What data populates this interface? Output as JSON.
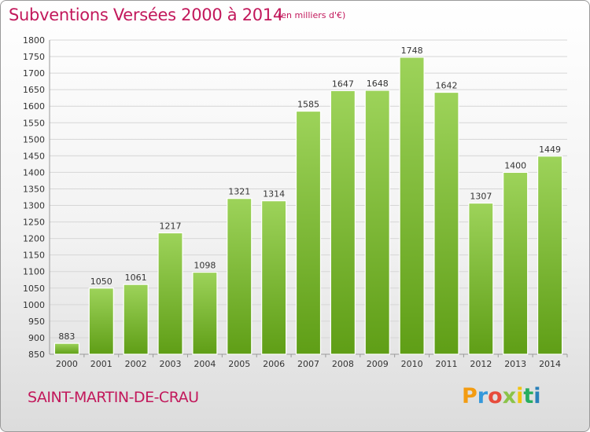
{
  "header": {
    "title": "Subventions Versées 2000 à 2014",
    "unit": "(en milliers d'€)"
  },
  "footer": {
    "commune": "SAINT-MARTIN-DE-CRAU",
    "logo": "Proxiti"
  },
  "colors": {
    "title": "#c2185b",
    "bar_top": "#9dd35a",
    "bar_bottom": "#5f9e16",
    "logo_letters": [
      "#f39c12",
      "#3498db",
      "#e74c3c",
      "#8bc34a",
      "#f1c40f",
      "#27ae60",
      "#2980b9"
    ]
  },
  "chart_data": {
    "type": "bar",
    "title": "Subventions Versées 2000 à 2014",
    "xlabel": "",
    "ylabel": "",
    "categories": [
      "2000",
      "2001",
      "2002",
      "2003",
      "2004",
      "2005",
      "2006",
      "2007",
      "2008",
      "2009",
      "2010",
      "2011",
      "2012",
      "2013",
      "2014"
    ],
    "values": [
      883,
      1050,
      1061,
      1217,
      1098,
      1321,
      1314,
      1585,
      1647,
      1648,
      1748,
      1642,
      1307,
      1400,
      1449
    ],
    "ylim": [
      850,
      1800
    ],
    "yticks": [
      850,
      900,
      950,
      1000,
      1050,
      1100,
      1150,
      1200,
      1250,
      1300,
      1350,
      1400,
      1450,
      1500,
      1550,
      1600,
      1650,
      1700,
      1750,
      1800
    ],
    "grid": true,
    "legend": "none"
  }
}
